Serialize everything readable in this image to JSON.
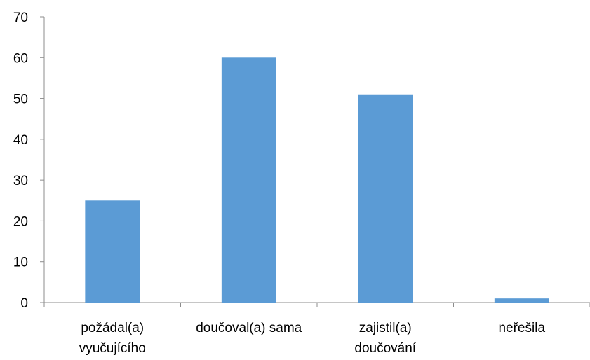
{
  "chart_data": {
    "type": "bar",
    "title": "",
    "xlabel": "",
    "ylabel": "",
    "categories": [
      [
        "požádal(a)",
        "vyučujícího"
      ],
      [
        "doučoval(a) sama"
      ],
      [
        "zajistil(a)",
        "doučování"
      ],
      [
        "neřešila"
      ]
    ],
    "values": [
      25,
      60,
      51,
      1
    ],
    "ylim": [
      0,
      70
    ],
    "yticks": [
      "0",
      "10",
      "20",
      "30",
      "40",
      "50",
      "60",
      "70"
    ],
    "grid": false,
    "legend": "none",
    "bar_color": "#5b9bd5",
    "axis_color": "#8c8c8c"
  }
}
